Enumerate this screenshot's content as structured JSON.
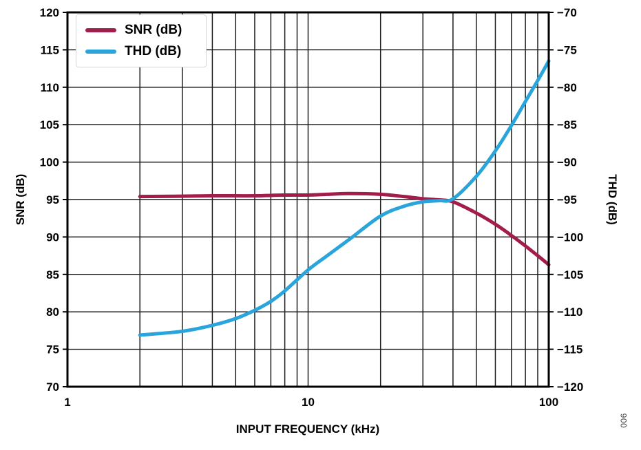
{
  "figure": {
    "code_label": "006"
  },
  "legend": {
    "items": [
      {
        "label": "SNR (dB)",
        "color": "#A21D4B"
      },
      {
        "label": "THD (dB)",
        "color": "#29A5DC"
      }
    ]
  },
  "chart_data": {
    "type": "line",
    "title": "",
    "grid": "on",
    "legend_position": "top-left",
    "x_axis": {
      "label": "INPUT FREQUENCY (kHz)",
      "scale": "log",
      "min": 1,
      "max": 100,
      "tick_labels": [
        1,
        10,
        100
      ],
      "minor_gridlines": [
        2,
        3,
        4,
        5,
        6,
        7,
        8,
        9,
        10,
        20,
        30,
        40,
        50,
        60,
        70,
        80,
        90
      ]
    },
    "y_axis_left": {
      "label": "SNR (dB)",
      "min": 70,
      "max": 120,
      "tick_step": 5,
      "ticks": [
        120,
        115,
        110,
        105,
        100,
        95,
        90,
        85,
        80,
        75,
        70
      ]
    },
    "y_axis_right": {
      "label": "THD (dB)",
      "min": -120,
      "max": -70,
      "tick_step": 5,
      "ticks": [
        -70,
        -75,
        -80,
        -85,
        -90,
        -95,
        -100,
        -105,
        -110,
        -115,
        -120
      ]
    },
    "series": [
      {
        "name": "SNR (dB)",
        "axis": "left",
        "color": "#A21D4B",
        "x": [
          2,
          3,
          4,
          5,
          6,
          7,
          8,
          10,
          12,
          15,
          20,
          25,
          30,
          35,
          40,
          50,
          60,
          70,
          80,
          90,
          100
        ],
        "y": [
          95.4,
          95.45,
          95.5,
          95.5,
          95.5,
          95.55,
          95.6,
          95.6,
          95.7,
          95.8,
          95.7,
          95.4,
          95.1,
          94.95,
          94.7,
          93.2,
          91.7,
          90.2,
          88.8,
          87.5,
          86.3
        ]
      },
      {
        "name": "THD (dB)",
        "axis": "right",
        "color": "#29A5DC",
        "x": [
          2,
          3,
          4,
          5,
          6,
          7,
          8,
          10,
          12,
          15,
          20,
          25,
          30,
          35,
          40,
          50,
          60,
          70,
          80,
          90,
          100
        ],
        "y": [
          -113.1,
          -112.6,
          -111.8,
          -110.9,
          -109.8,
          -108.6,
          -107.2,
          -104.4,
          -102.5,
          -100.2,
          -97.2,
          -95.9,
          -95.3,
          -95.15,
          -94.9,
          -91.9,
          -88.5,
          -85.1,
          -81.9,
          -79.1,
          -76.5
        ]
      }
    ]
  }
}
